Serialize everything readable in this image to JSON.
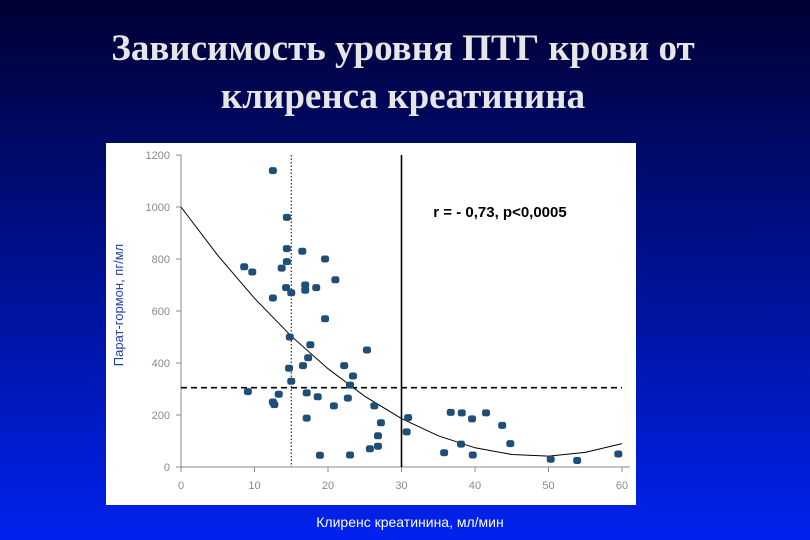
{
  "chart_data": {
    "type": "scatter",
    "title": [
      "Зависимость уровня ПТГ крови от",
      "клиренса креатинина"
    ],
    "annotation": "r = - 0,73, p<0,0005",
    "x_label": "Клиренс креатинина, мл/мин",
    "y_label": "Парат-гормон, пг/мл",
    "xlim": [
      0,
      60
    ],
    "xticks": [
      0,
      10,
      20,
      30,
      40,
      50,
      60
    ],
    "ylim": [
      0,
      1200
    ],
    "yticks": [
      0,
      200,
      400,
      600,
      800,
      1000,
      1200
    ],
    "color": "#1f4e79",
    "x": [
      12.5,
      14.4,
      14.4,
      16.5,
      14.4,
      19.6,
      8.6,
      9.7,
      13.7,
      21.0,
      14.3,
      15.0,
      16.9,
      16.9,
      18.4,
      12.5,
      19.6,
      14.8,
      17.6,
      25.3,
      17.3,
      22.2,
      14.7,
      16.6,
      23.4,
      23.0,
      15.0,
      9.1,
      13.3,
      17.1,
      18.6,
      22.7,
      12.5,
      12.7,
      20.8,
      26.3,
      30.9,
      17.1,
      27.2,
      26.8,
      30.7,
      26.8,
      25.7,
      18.9,
      23.0,
      36.7,
      38.2,
      39.6,
      41.5,
      43.7,
      44.8,
      38.1,
      39.7,
      35.8,
      50.3,
      53.9,
      59.5
    ],
    "y": [
      1140,
      960,
      840,
      830,
      790,
      800,
      770,
      750,
      765,
      720,
      690,
      670,
      700,
      680,
      690,
      650,
      570,
      500,
      470,
      450,
      420,
      390,
      380,
      390,
      350,
      315,
      330,
      290,
      280,
      285,
      270,
      265,
      250,
      240,
      235,
      235,
      190,
      188,
      170,
      120,
      135,
      80,
      70,
      45,
      46,
      210,
      208,
      185,
      208,
      160,
      90,
      88,
      46,
      55,
      30,
      25,
      50
    ],
    "trend": {
      "x": [
        0,
        5,
        10,
        15,
        20,
        25,
        30,
        35,
        40,
        45,
        50,
        55,
        60
      ],
      "y": [
        1000,
        814,
        649,
        503,
        378,
        272,
        186,
        120,
        74,
        48,
        42,
        56,
        90
      ]
    },
    "reference_lines": [
      {
        "axis": "x",
        "value": 15,
        "style": "dotted"
      },
      {
        "axis": "x",
        "value": 30,
        "style": "solid"
      },
      {
        "axis": "y",
        "value": 305,
        "style": "dashed"
      }
    ]
  }
}
